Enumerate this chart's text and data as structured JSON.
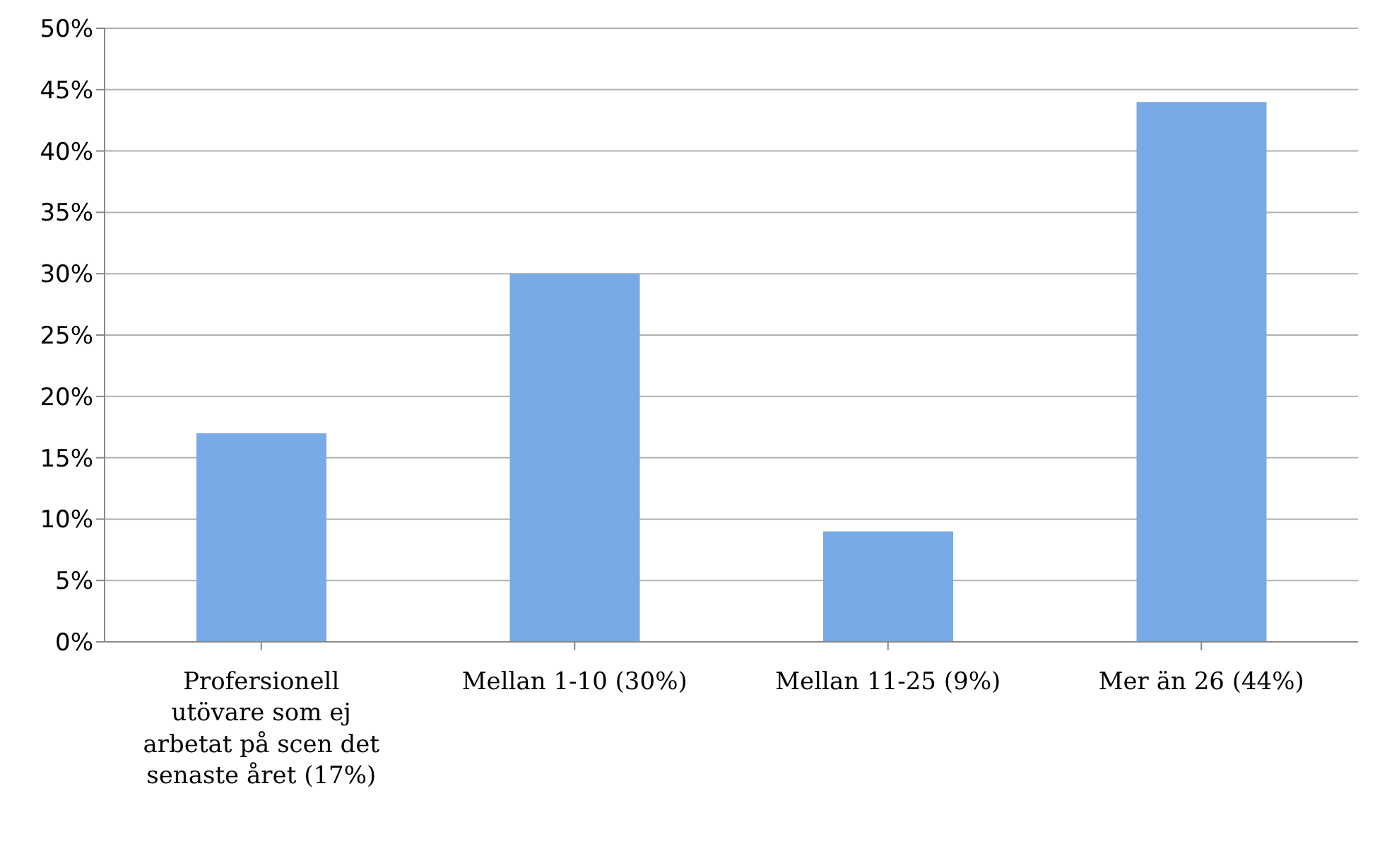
{
  "chart_data": {
    "type": "bar",
    "categories": [
      "Profersionell utövare som ej arbetat på scen det senaste året (17%)",
      "Mellan 1-10 (30%)",
      "Mellan 11-25 (9%)",
      "Mer än 26 (44%)"
    ],
    "values": [
      17,
      30,
      9,
      44
    ],
    "color": "#77aae6",
    "ylim": [
      0,
      50
    ],
    "yticks": [
      {
        "value": 0,
        "label": "0%"
      },
      {
        "value": 5,
        "label": "5%"
      },
      {
        "value": 10,
        "label": "10%"
      },
      {
        "value": 15,
        "label": "15%"
      },
      {
        "value": 20,
        "label": "20%"
      },
      {
        "value": 25,
        "label": "25%"
      },
      {
        "value": 30,
        "label": "30%"
      },
      {
        "value": 35,
        "label": "35%"
      },
      {
        "value": 40,
        "label": "40%"
      },
      {
        "value": 45,
        "label": "45%"
      },
      {
        "value": 50,
        "label": "50%"
      }
    ],
    "grid": "y"
  }
}
